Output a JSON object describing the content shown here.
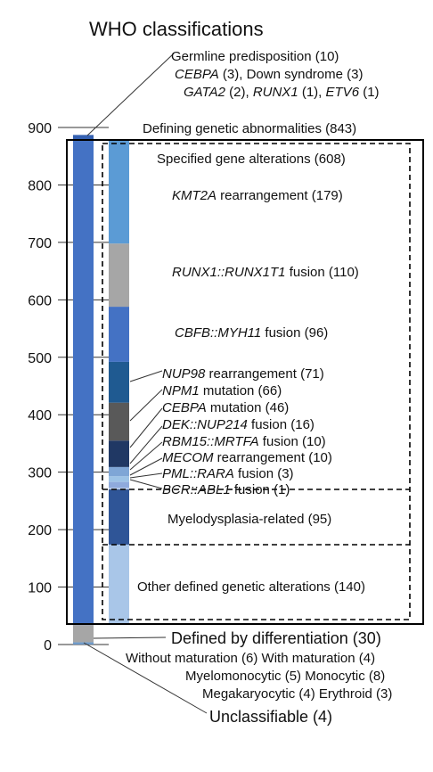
{
  "chart_data": {
    "type": "bar",
    "title": "WHO classifications",
    "ylim": [
      0,
      900
    ],
    "yticks": [
      0,
      100,
      200,
      300,
      400,
      500,
      600,
      700,
      800,
      900
    ],
    "total_bar": {
      "segments": [
        {
          "name": "Unclassifiable",
          "start": 0,
          "end": 4,
          "color": "#6f9ac8"
        },
        {
          "name": "Defined by differentiation",
          "start": 4,
          "end": 34,
          "color": "#a6a6a6"
        },
        {
          "name": "Defining genetic abnormalities",
          "start": 34,
          "end": 877,
          "color": "#4472c4"
        },
        {
          "name": "Germline predisposition",
          "start": 877,
          "end": 887,
          "color": "#3460b0"
        }
      ]
    },
    "detail_bar": {
      "segments": [
        {
          "name": "Other defined genetic alterations",
          "start": 34,
          "end": 174,
          "color": "#a9c6e8"
        },
        {
          "name": "Myelodysplasia-related",
          "start": 174,
          "end": 269,
          "color": "#2f5597"
        },
        {
          "name": "BCR::ABL1 fusion",
          "start": 269,
          "end": 270,
          "color": "#264478"
        },
        {
          "name": "PML::RARA fusion",
          "start": 270,
          "end": 273,
          "color": "#b4c7e7"
        },
        {
          "name": "MECOM rearrangement",
          "start": 273,
          "end": 283,
          "color": "#8faadc"
        },
        {
          "name": "RBM15::MRTFA fusion",
          "start": 283,
          "end": 293,
          "color": "#9dc3e6"
        },
        {
          "name": "DEK::NUP214 fusion",
          "start": 293,
          "end": 309,
          "color": "#7fa6d6"
        },
        {
          "name": "CEBPA mutation",
          "start": 309,
          "end": 355,
          "color": "#203864"
        },
        {
          "name": "NPM1 mutation",
          "start": 355,
          "end": 421,
          "color": "#595959"
        },
        {
          "name": "NUP98 rearrangement",
          "start": 421,
          "end": 492,
          "color": "#1f5a91"
        },
        {
          "name": "CBFB::MYH11 fusion",
          "start": 492,
          "end": 588,
          "color": "#4472c4"
        },
        {
          "name": "RUNX1::RUNX1T1 fusion",
          "start": 588,
          "end": 698,
          "color": "#a6a6a6"
        },
        {
          "name": "KMT2A rearrangement",
          "start": 698,
          "end": 877,
          "color": "#5b9bd5"
        }
      ]
    },
    "labels": {
      "germline_line1": "Germline predisposition (10)",
      "germline_line2_a": "CEBPA",
      "germline_line2_b": " (3), Down syndrome (3)",
      "germline_line3_a": "GATA2",
      "germline_line3_b": " (2), ",
      "germline_line3_c": "RUNX1",
      "germline_line3_d": " (1), ",
      "germline_line3_e": "ETV6",
      "germline_line3_f": " (1)",
      "defining": "Defining genetic abnormalities (843)",
      "specified": "Specified gene alterations (608)",
      "kmt2a_a": "KMT2A",
      "kmt2a_b": " rearrangement (179)",
      "runx1_a": "RUNX1::RUNX1T1",
      "runx1_b": " fusion (110)",
      "cbfb_a": "CBFB::MYH11",
      "cbfb_b": " fusion (96)",
      "nup98_a": "NUP98",
      "nup98_b": " rearrangement (71)",
      "npm1_a": "NPM1",
      "npm1_b": " mutation (66)",
      "cebpa_a": "CEBPA",
      "cebpa_b": " mutation (46)",
      "dek_a": "DEK::NUP214",
      "dek_b": " fusion (16)",
      "rbm15_a": "RBM15::MRTFA",
      "rbm15_b": " fusion (10)",
      "mecom_a": "MECOM",
      "mecom_b": " rearrangement (10)",
      "pml_a": "PML::RARA",
      "pml_b": " fusion (3)",
      "bcr_a": "BCR::ABL1",
      "bcr_b": " fusion (1)",
      "mds": "Myelodysplasia-related (95)",
      "other": "Other defined genetic alterations (140)",
      "diff": "Defined by differentiation (30)",
      "diff_line1": "Without maturation (6) With maturation (4)",
      "diff_line2": "Myelomonocytic (5) Monocytic (8)",
      "diff_line3": "Megakaryocytic (4) Erythroid (3)",
      "unclass": "Unclassifiable (4)"
    }
  }
}
